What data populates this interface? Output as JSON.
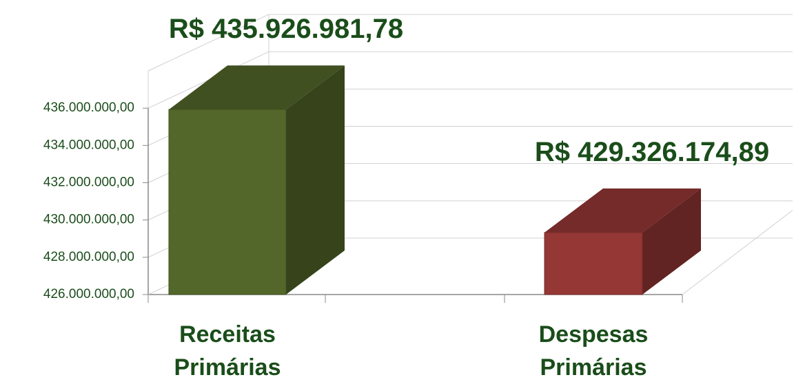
{
  "chart_data": {
    "type": "bar3d",
    "categories": [
      "Receitas Primárias",
      "Despesas Primárias"
    ],
    "values": [
      435926981.78,
      429326174.89
    ],
    "value_labels": [
      "R$ 435.926.981,78",
      "R$ 429.326.174,89"
    ],
    "colors": [
      "#53672a",
      "#953735"
    ],
    "ylim": [
      426000000,
      438000000
    ],
    "yticks": [
      {
        "value": 426000000,
        "label": "426.000.000,00"
      },
      {
        "value": 428000000,
        "label": "428.000.000,00"
      },
      {
        "value": 430000000,
        "label": "430.000.000,00"
      },
      {
        "value": 432000000,
        "label": "432.000.000,00"
      },
      {
        "value": 434000000,
        "label": "434.000.000,00"
      },
      {
        "value": 436000000,
        "label": "436.000.000,00"
      }
    ],
    "grid": true
  }
}
